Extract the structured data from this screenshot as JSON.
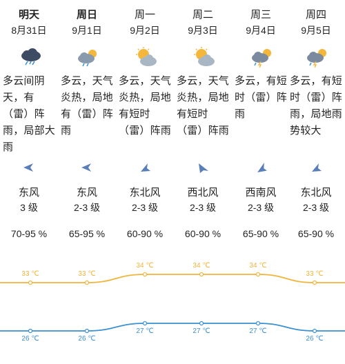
{
  "days": [
    {
      "day": "明天",
      "date": "8月31日",
      "icon": "thunder-rain-icon",
      "desc": "多云间阴天，有（雷）阵雨，局部大雨",
      "wind_dir": "东风",
      "wind_level": "3 级",
      "humidity": "70-95 %",
      "wind_icon": "wind-arrow-icon"
    },
    {
      "day": "周日",
      "date": "9月1日",
      "icon": "partly-cloudy-sun-icon",
      "desc": "多云，天气炎热，局地有（雷）阵雨",
      "wind_dir": "东风",
      "wind_level": "2-3 级",
      "humidity": "65-95 %",
      "wind_icon": "wind-arrow-icon"
    },
    {
      "day": "周一",
      "date": "9月2日",
      "icon": "sun-cloud-icon",
      "desc": "多云，天气炎热，局地有短时（雷）阵雨",
      "wind_dir": "东北风",
      "wind_level": "2-3 级",
      "humidity": "60-90 %",
      "wind_icon": "wind-arrow-icon"
    },
    {
      "day": "周二",
      "date": "9月3日",
      "icon": "sun-cloud-icon",
      "desc": "多云，天气炎热，局地有短时（雷）阵雨",
      "wind_dir": "西北风",
      "wind_level": "2-3 级",
      "humidity": "60-90 %",
      "wind_icon": "wind-arrow-icon"
    },
    {
      "day": "周三",
      "date": "9月4日",
      "icon": "thunder-sun-cloud-icon",
      "desc": "多云，有短时（雷）阵雨",
      "wind_dir": "西南风",
      "wind_level": "2-3 级",
      "humidity": "65-90 %",
      "wind_icon": "wind-arrow-icon"
    },
    {
      "day": "周四",
      "date": "9月5日",
      "icon": "thunder-sun-cloud-icon",
      "desc": "多云，有短时（雷）阵雨，局地雨势较大",
      "wind_dir": "东北风",
      "wind_level": "2-3 级",
      "humidity": "65-90 %",
      "wind_icon": "wind-arrow-icon"
    }
  ],
  "colors": {
    "high": "#f0b43a",
    "low": "#3a8fd0",
    "arrow": "#5a7fb8",
    "cloud": "#8a9aad",
    "sun": "#f5b73b"
  },
  "chart_data": {
    "type": "line",
    "categories": [
      "8月31日",
      "9月1日",
      "9月2日",
      "9月3日",
      "9月4日",
      "9月5日"
    ],
    "series": [
      {
        "values": [
          33,
          33,
          34,
          34,
          34,
          33
        ],
        "labels": [
          "33 ℃",
          "33 ℃",
          "34 ℃",
          "34 ℃",
          "34 ℃",
          "33 ℃"
        ]
      },
      {
        "values": [
          26,
          26,
          27,
          27,
          27,
          26
        ],
        "labels": [
          "26 ℃",
          "26 ℃",
          "27 ℃",
          "27 ℃",
          "27 ℃",
          "26 ℃"
        ]
      }
    ]
  }
}
